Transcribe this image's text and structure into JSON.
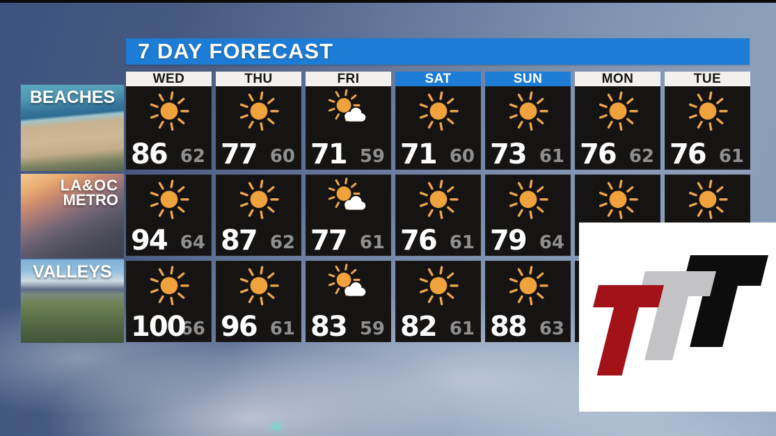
{
  "title": "7 DAY FORECAST",
  "colors": {
    "accent_blue": "#1d7cd5",
    "header_white": "#f2f1ee",
    "cell_bg": "#161413",
    "sun_orange": "#f0a23c",
    "sun_ray": "#eda64f",
    "high_temp_white": "#fdfdfd",
    "low_temp_gray": "#8f8f8f",
    "logo_red": "#a31119",
    "logo_gray": "#c3c3c5",
    "logo_black": "#0d0d0d"
  },
  "forecast": {
    "days": [
      {
        "label": "WED",
        "weekend": false
      },
      {
        "label": "THU",
        "weekend": false
      },
      {
        "label": "FRI",
        "weekend": false
      },
      {
        "label": "SAT",
        "weekend": true
      },
      {
        "label": "SUN",
        "weekend": true
      },
      {
        "label": "MON",
        "weekend": false
      },
      {
        "label": "TUE",
        "weekend": false
      }
    ],
    "regions": [
      {
        "label_line1": "BEACHES",
        "label_line2": "",
        "cells": [
          {
            "icon": "sunny",
            "high": "86",
            "low": "62"
          },
          {
            "icon": "sunny",
            "high": "77",
            "low": "60"
          },
          {
            "icon": "partly-cloudy",
            "high": "71",
            "low": "59"
          },
          {
            "icon": "sunny",
            "high": "71",
            "low": "60"
          },
          {
            "icon": "sunny",
            "high": "73",
            "low": "61"
          },
          {
            "icon": "sunny",
            "high": "76",
            "low": "62"
          },
          {
            "icon": "sunny",
            "high": "76",
            "low": "61"
          }
        ]
      },
      {
        "label_line1": "LA&OC",
        "label_line2": "METRO",
        "cells": [
          {
            "icon": "sunny",
            "high": "94",
            "low": "64"
          },
          {
            "icon": "sunny",
            "high": "87",
            "low": "62"
          },
          {
            "icon": "partly-cloudy",
            "high": "77",
            "low": "61"
          },
          {
            "icon": "sunny",
            "high": "76",
            "low": "61"
          },
          {
            "icon": "sunny",
            "high": "79",
            "low": "64"
          },
          {
            "icon": "sunny",
            "high": "",
            "low": ""
          },
          {
            "icon": "sunny",
            "high": "",
            "low": ""
          }
        ]
      },
      {
        "label_line1": "VALLEYS",
        "label_line2": "",
        "cells": [
          {
            "icon": "sunny",
            "high": "100",
            "low": "66"
          },
          {
            "icon": "sunny",
            "high": "96",
            "low": "61"
          },
          {
            "icon": "partly-cloudy",
            "high": "83",
            "low": "59"
          },
          {
            "icon": "sunny",
            "high": "82",
            "low": "61"
          },
          {
            "icon": "sunny",
            "high": "88",
            "low": "63"
          },
          {
            "icon": null,
            "high": "",
            "low": ""
          },
          {
            "icon": null,
            "high": "",
            "low": ""
          }
        ]
      }
    ]
  },
  "logo": {
    "letters": [
      "T",
      "T",
      "T"
    ]
  }
}
